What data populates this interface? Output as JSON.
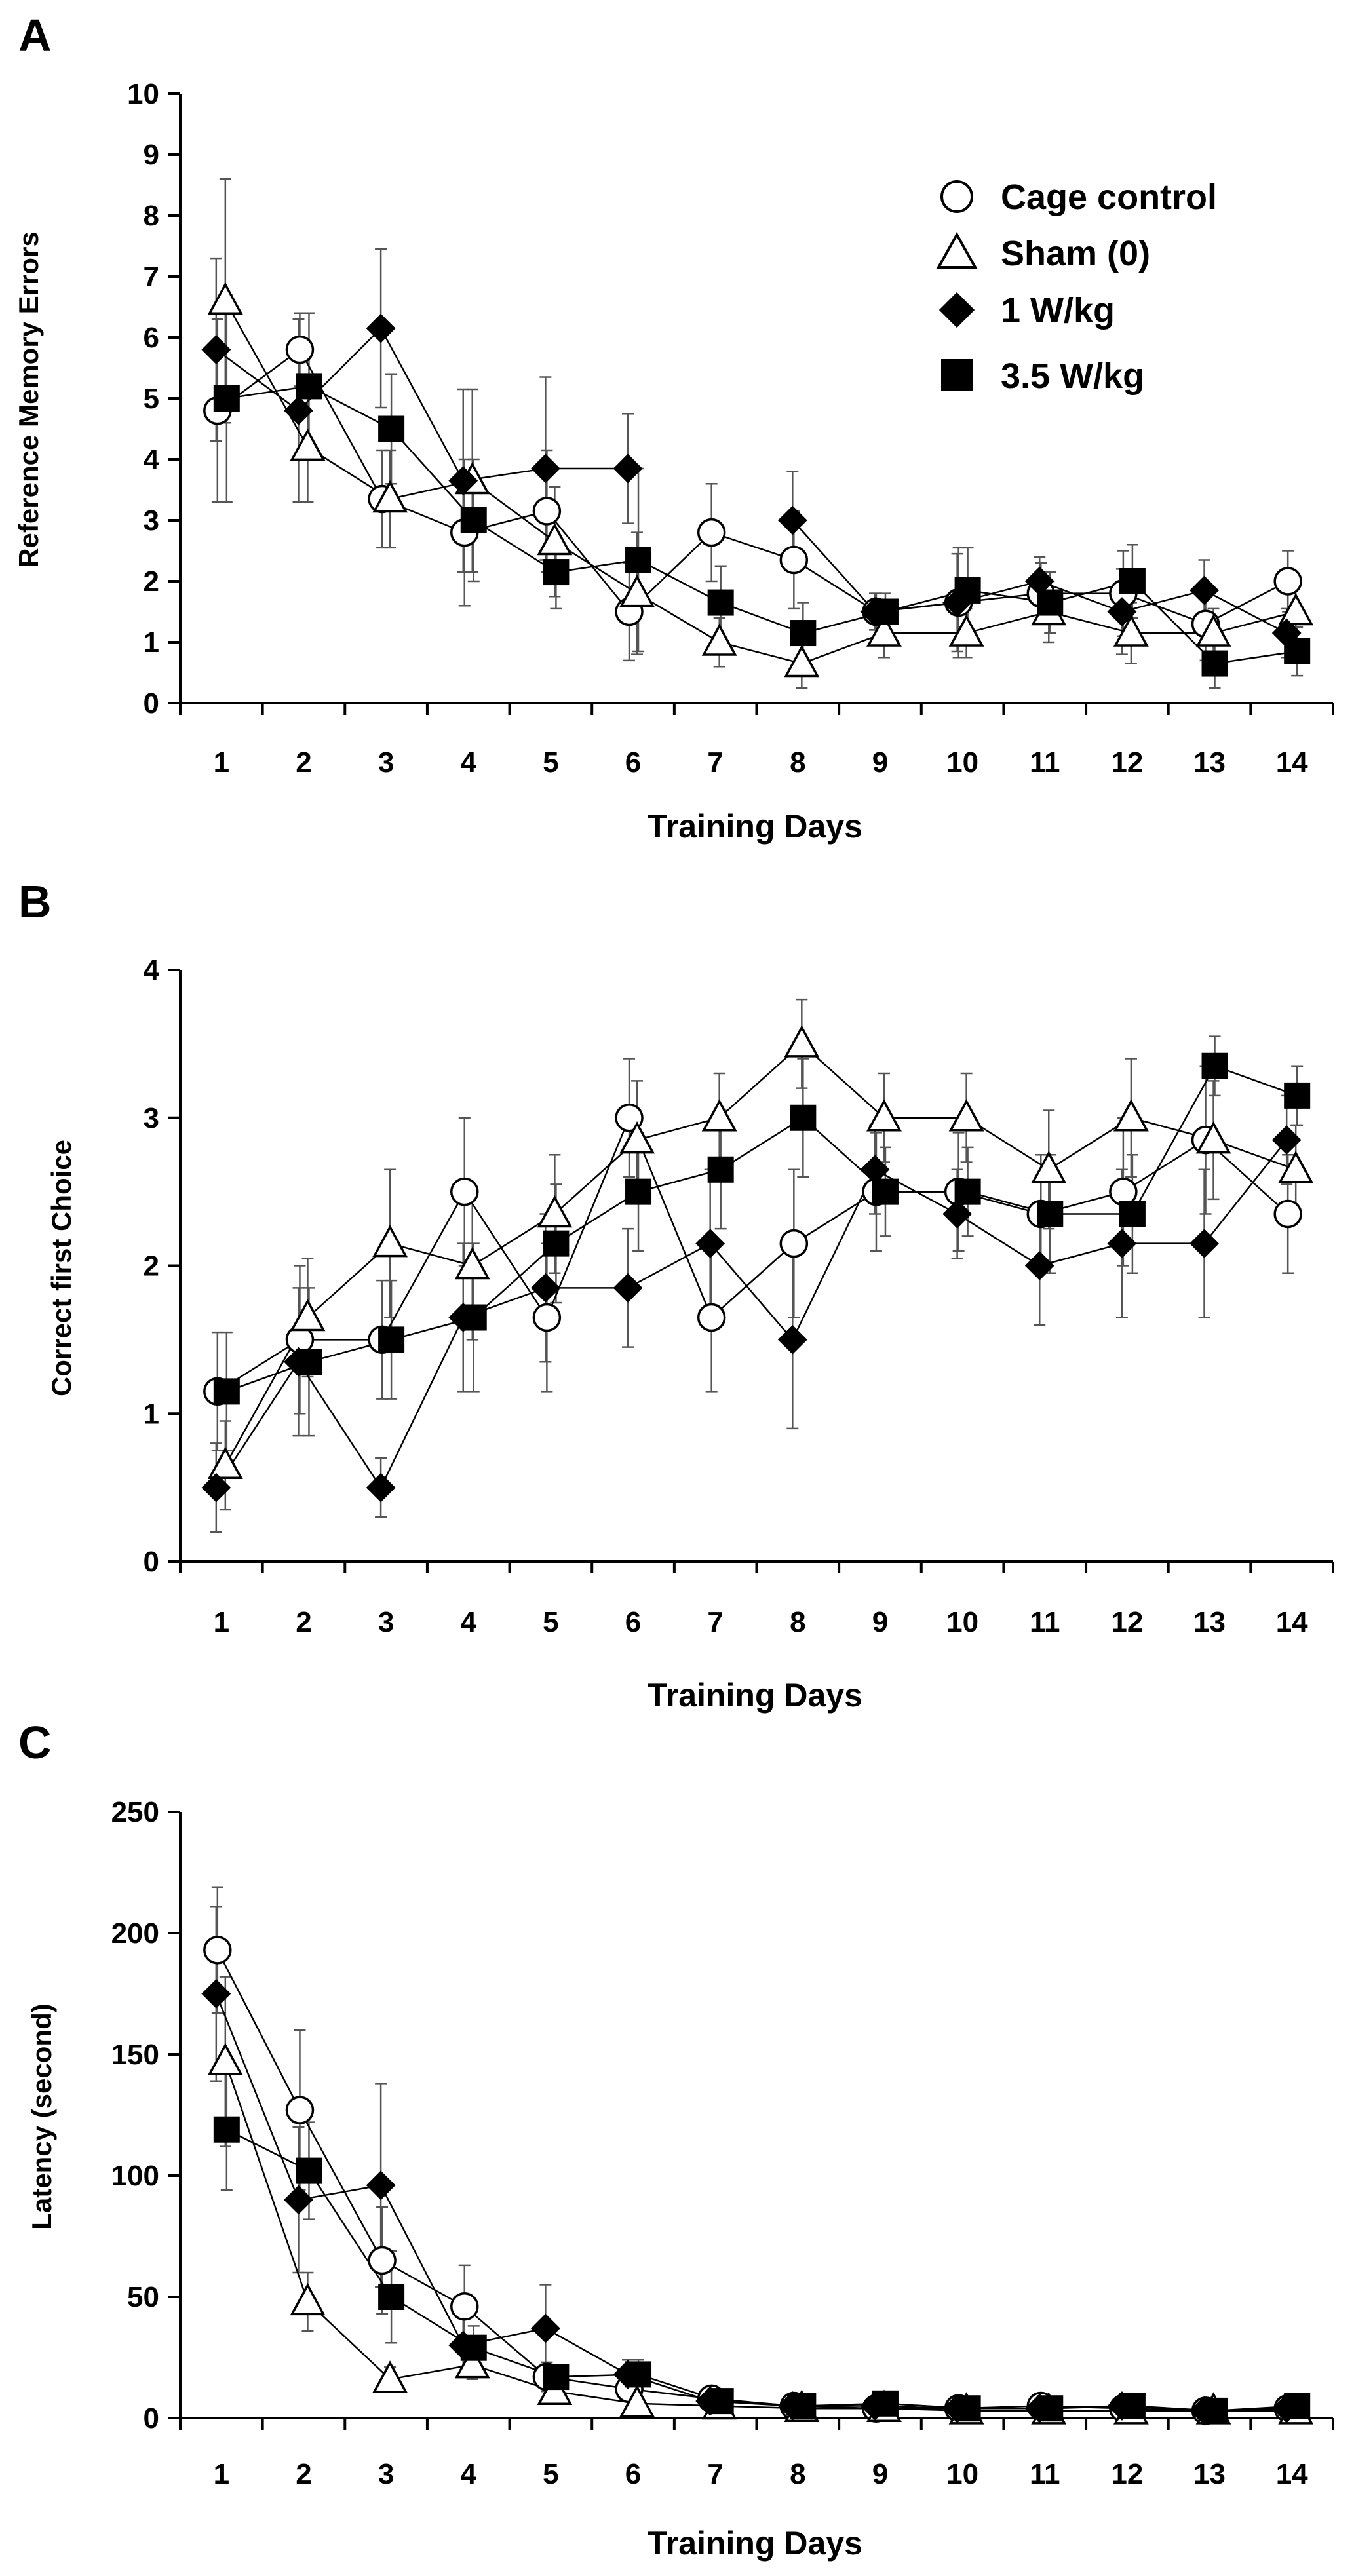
{
  "chart_data": [
    {
      "panel": "A",
      "type": "line",
      "title": "",
      "xlabel": "Training Days",
      "ylabel": "Reference Memory Errors",
      "ylim": [
        0,
        10
      ],
      "yticks": [
        0,
        1,
        2,
        3,
        4,
        5,
        6,
        7,
        8,
        9,
        10
      ],
      "categories": [
        "1",
        "2",
        "3",
        "4",
        "5",
        "6",
        "7",
        "8",
        "9",
        "10",
        "11",
        "12",
        "13",
        "14"
      ],
      "legend": {
        "placement": "top-right"
      },
      "series": [
        {
          "name": "Cage control",
          "marker": "circle",
          "values": [
            4.8,
            5.8,
            3.35,
            2.8,
            3.15,
            1.5,
            2.8,
            2.35,
            1.5,
            1.65,
            1.8,
            1.8,
            1.3,
            2.0
          ],
          "errors": [
            1.5,
            0.6,
            0.8,
            1.2,
            1.0,
            0.8,
            0.8,
            0.8,
            0.3,
            0.9,
            0.5,
            0.7,
            0.6,
            0.5
          ]
        },
        {
          "name": "Sham (0)",
          "marker": "triangle",
          "values": [
            6.6,
            4.2,
            3.35,
            3.65,
            2.65,
            1.8,
            1.0,
            0.65,
            1.15,
            1.15,
            1.5,
            1.15,
            1.15,
            1.5
          ],
          "errors": [
            2.0,
            0.9,
            0.8,
            1.5,
            0.9,
            1.0,
            0.4,
            0.4,
            0.4,
            0.4,
            0.5,
            0.5,
            0.4,
            0.5
          ]
        },
        {
          "name": "1 W/kg",
          "marker": "diamond",
          "values": [
            5.8,
            4.8,
            6.15,
            3.65,
            3.85,
            3.85,
            null,
            3.0,
            1.5,
            1.65,
            2.0,
            1.5,
            1.85,
            1.15
          ],
          "errors": [
            1.5,
            1.5,
            1.3,
            1.5,
            1.5,
            0.9,
            null,
            0.8,
            0.3,
            0.8,
            0.4,
            0.7,
            0.5,
            0.4
          ]
        },
        {
          "name": "3.5 W/kg",
          "marker": "square",
          "values": [
            5.0,
            5.2,
            4.5,
            3.0,
            2.15,
            2.35,
            1.65,
            1.15,
            1.5,
            1.85,
            1.65,
            2.0,
            0.65,
            0.85
          ],
          "errors": [
            1.7,
            1.2,
            0.9,
            1.0,
            0.6,
            1.5,
            0.6,
            0.5,
            0.3,
            0.7,
            0.5,
            0.6,
            0.4,
            0.4
          ]
        }
      ]
    },
    {
      "panel": "B",
      "type": "line",
      "title": "",
      "xlabel": "Training Days",
      "ylabel": "Correct first Choice",
      "ylim": [
        0,
        4
      ],
      "yticks": [
        0,
        1,
        2,
        3,
        4
      ],
      "categories": [
        "1",
        "2",
        "3",
        "4",
        "5",
        "6",
        "7",
        "8",
        "9",
        "10",
        "11",
        "12",
        "13",
        "14"
      ],
      "series": [
        {
          "name": "Cage control",
          "marker": "circle",
          "values": [
            1.15,
            1.5,
            1.5,
            2.5,
            1.65,
            3.0,
            1.65,
            2.15,
            2.5,
            2.5,
            2.35,
            2.5,
            2.85,
            2.35
          ],
          "errors": [
            0.4,
            0.5,
            0.4,
            0.5,
            0.5,
            0.4,
            0.5,
            0.5,
            0.4,
            0.4,
            0.4,
            0.5,
            0.5,
            0.4
          ]
        },
        {
          "name": "Sham (0)",
          "marker": "triangle",
          "values": [
            0.65,
            1.65,
            2.15,
            2.0,
            2.35,
            2.85,
            3.0,
            3.5,
            3.0,
            3.0,
            2.65,
            3.0,
            2.85,
            2.65
          ],
          "errors": [
            0.3,
            0.4,
            0.5,
            0.5,
            0.4,
            0.4,
            0.3,
            0.3,
            0.3,
            0.3,
            0.4,
            0.4,
            0.4,
            0.3
          ]
        },
        {
          "name": "1 W/kg",
          "marker": "diamond",
          "values": [
            0.5,
            1.35,
            0.5,
            1.65,
            1.85,
            1.85,
            2.15,
            1.5,
            2.65,
            2.35,
            2.0,
            2.15,
            2.15,
            2.85
          ],
          "errors": [
            0.3,
            0.5,
            0.2,
            0.5,
            0.5,
            0.4,
            0.5,
            0.6,
            0.3,
            0.3,
            0.4,
            0.5,
            0.5,
            0.3
          ]
        },
        {
          "name": "3.5 W/kg",
          "marker": "square",
          "values": [
            1.15,
            1.35,
            1.5,
            1.65,
            2.15,
            2.5,
            2.65,
            3.0,
            2.5,
            2.5,
            2.35,
            2.35,
            3.35,
            3.15
          ],
          "errors": [
            0.4,
            0.5,
            0.4,
            0.5,
            0.4,
            0.4,
            0.4,
            0.4,
            0.3,
            0.3,
            0.4,
            0.4,
            0.2,
            0.2
          ]
        }
      ]
    },
    {
      "panel": "C",
      "type": "line",
      "title": "",
      "xlabel": "Training Days",
      "ylabel": "Latency (second)",
      "ylim": [
        0,
        250
      ],
      "yticks": [
        0,
        50,
        100,
        150,
        200,
        250
      ],
      "categories": [
        "1",
        "2",
        "3",
        "4",
        "5",
        "6",
        "7",
        "8",
        "9",
        "10",
        "11",
        "12",
        "13",
        "14"
      ],
      "series": [
        {
          "name": "Cage control",
          "marker": "circle",
          "values": [
            193,
            127,
            65,
            46,
            17,
            12,
            8,
            5,
            4,
            4,
            5,
            4,
            3,
            4
          ],
          "errors": [
            26,
            33,
            22,
            17,
            6,
            5,
            3,
            2,
            2,
            2,
            2,
            2,
            2,
            2
          ]
        },
        {
          "name": "Sham (0)",
          "marker": "triangle",
          "values": [
            147,
            48,
            16,
            22,
            11,
            6,
            5,
            4,
            4,
            3,
            3,
            3,
            3,
            3
          ],
          "errors": [
            35,
            12,
            5,
            6,
            4,
            3,
            2,
            2,
            2,
            2,
            2,
            2,
            2,
            2
          ]
        },
        {
          "name": "1 W/kg",
          "marker": "diamond",
          "values": [
            175,
            90,
            96,
            30,
            37,
            18,
            7,
            5,
            5,
            4,
            4,
            5,
            3,
            4
          ],
          "errors": [
            36,
            30,
            42,
            12,
            18,
            6,
            3,
            2,
            2,
            2,
            2,
            2,
            2,
            2
          ]
        },
        {
          "name": "3.5 W/kg",
          "marker": "square",
          "values": [
            119,
            102,
            50,
            29,
            17,
            18,
            7,
            5,
            6,
            4,
            4,
            5,
            3,
            5
          ],
          "errors": [
            25,
            20,
            19,
            9,
            5,
            6,
            3,
            2,
            2,
            2,
            2,
            2,
            2,
            2
          ]
        }
      ]
    }
  ]
}
